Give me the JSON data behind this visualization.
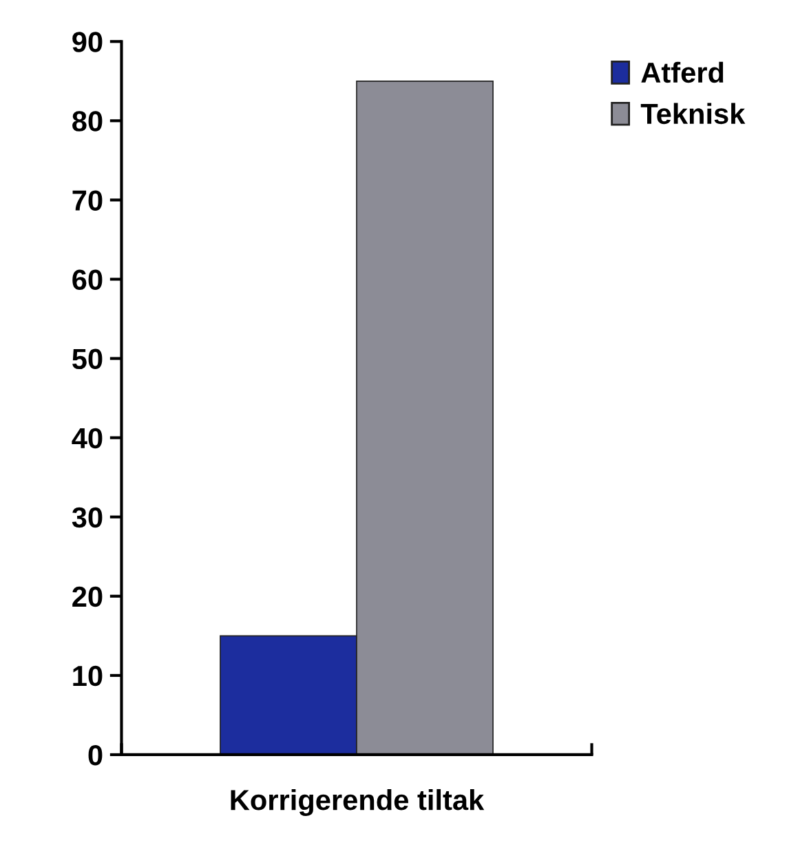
{
  "chart_data": {
    "type": "bar",
    "categories": [
      "Korrigerende tiltak"
    ],
    "series": [
      {
        "name": "Atferd",
        "color": "#1c2d9e",
        "values": [
          15
        ]
      },
      {
        "name": "Teknisk",
        "color": "#8c8c96",
        "values": [
          85
        ]
      }
    ],
    "ylim": [
      0,
      90
    ],
    "yticks": [
      0,
      10,
      20,
      30,
      40,
      50,
      60,
      70,
      80,
      90
    ],
    "grid": false,
    "legend": "top right"
  }
}
